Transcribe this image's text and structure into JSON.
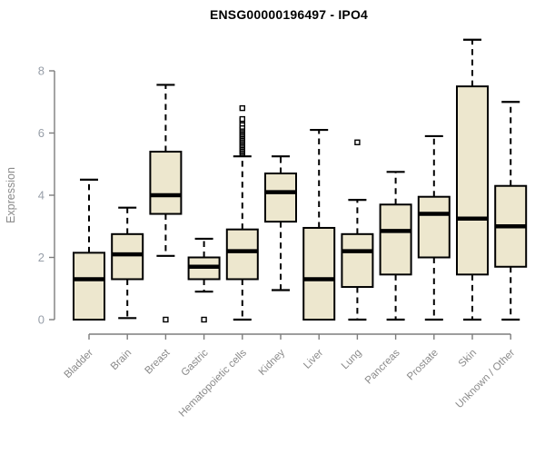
{
  "chart_data": {
    "type": "box",
    "title": "ENSG00000196497 - IPO4",
    "ylabel": "Expression",
    "xlabel": "",
    "ylim": [
      0,
      8
    ],
    "yticks": [
      0,
      2,
      4,
      6,
      8
    ],
    "grid": false,
    "legend": "none",
    "colors": {
      "box_fill": "#ede7ce",
      "box_stroke": "#000000",
      "median": "#000000",
      "whisker": "#000000",
      "axis_line": "#7d7d7d",
      "tick_label": "#979ea8",
      "axis_label": "#8a8a8a",
      "category_label": "#8a8a8a",
      "title": "#000000",
      "background": "#ffffff"
    },
    "categories": [
      "Bladder",
      "Brain",
      "Breast",
      "Gastric",
      "Hematopoietic cells",
      "Kidney",
      "Liver",
      "Lung",
      "Pancreas",
      "Prostate",
      "Skin",
      "Unknown / Other"
    ],
    "boxes": [
      {
        "name": "Bladder",
        "whisker_low": 0,
        "q1": 0,
        "median": 1.3,
        "q3": 2.15,
        "whisker_high": 4.5,
        "outliers": []
      },
      {
        "name": "Brain",
        "whisker_low": 0.05,
        "q1": 1.3,
        "median": 2.1,
        "q3": 2.75,
        "whisker_high": 3.6,
        "outliers": []
      },
      {
        "name": "Breast",
        "whisker_low": 2.05,
        "q1": 3.4,
        "median": 4.0,
        "q3": 5.4,
        "whisker_high": 7.55,
        "outliers": [
          0
        ]
      },
      {
        "name": "Gastric",
        "whisker_low": 0.9,
        "q1": 1.3,
        "median": 1.7,
        "q3": 2.0,
        "whisker_high": 2.6,
        "outliers": [
          0
        ]
      },
      {
        "name": "Hematopoietic cells",
        "whisker_low": 0,
        "q1": 1.3,
        "median": 2.2,
        "q3": 2.9,
        "whisker_high": 5.25,
        "outliers": [
          5.35,
          5.4,
          5.45,
          5.5,
          5.55,
          5.6,
          5.65,
          5.7,
          5.75,
          5.8,
          5.85,
          5.9,
          5.95,
          6.0,
          6.05,
          6.1,
          6.15,
          6.2,
          6.3,
          6.4,
          6.45,
          6.8
        ]
      },
      {
        "name": "Kidney",
        "whisker_low": 0.95,
        "q1": 3.15,
        "median": 4.1,
        "q3": 4.7,
        "whisker_high": 5.25,
        "outliers": []
      },
      {
        "name": "Liver",
        "whisker_low": 0,
        "q1": 0,
        "median": 1.3,
        "q3": 2.95,
        "whisker_high": 6.1,
        "outliers": []
      },
      {
        "name": "Lung",
        "whisker_low": 0,
        "q1": 1.05,
        "median": 2.2,
        "q3": 2.75,
        "whisker_high": 3.85,
        "outliers": [
          5.7
        ]
      },
      {
        "name": "Pancreas",
        "whisker_low": 0,
        "q1": 1.45,
        "median": 2.85,
        "q3": 3.7,
        "whisker_high": 4.75,
        "outliers": []
      },
      {
        "name": "Prostate",
        "whisker_low": 0,
        "q1": 2.0,
        "median": 3.4,
        "q3": 3.95,
        "whisker_high": 5.9,
        "outliers": []
      },
      {
        "name": "Skin",
        "whisker_low": 0,
        "q1": 1.45,
        "median": 3.25,
        "q3": 7.5,
        "whisker_high": 9.0,
        "outliers": []
      },
      {
        "name": "Unknown / Other",
        "whisker_low": 0,
        "q1": 1.7,
        "median": 3.0,
        "q3": 4.3,
        "whisker_high": 7.0,
        "outliers": []
      }
    ]
  }
}
